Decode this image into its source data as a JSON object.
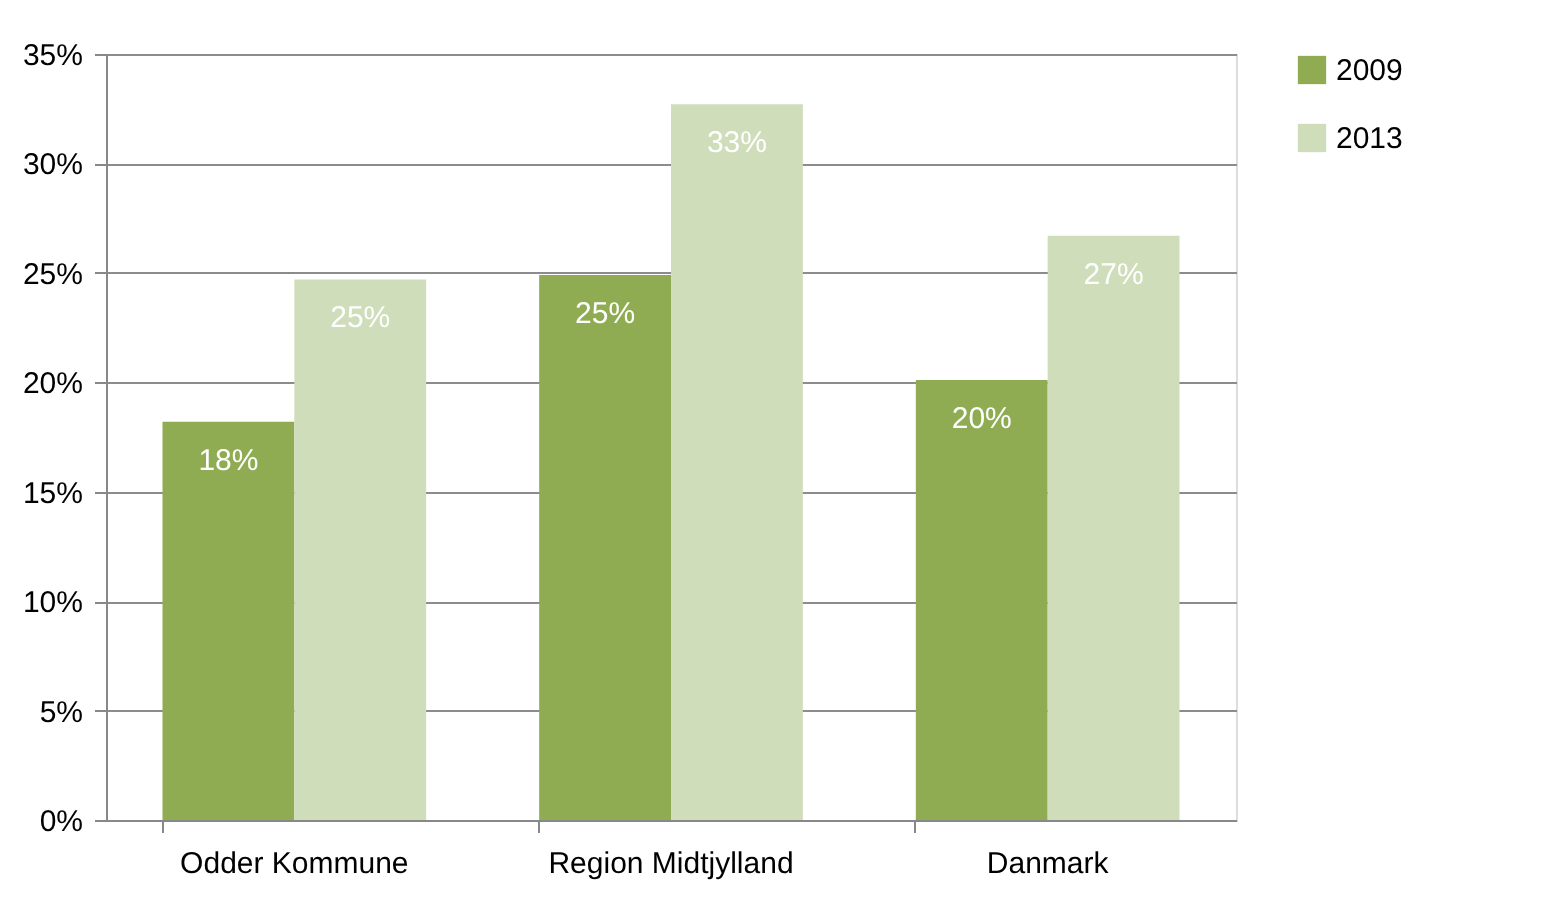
{
  "chart_data": {
    "type": "bar",
    "categories": [
      "Odder Kommune",
      "Region Midtjylland",
      "Danmark"
    ],
    "series": [
      {
        "name": "2009",
        "color": "#8fac52",
        "values": [
          18.2,
          24.9,
          20.1
        ],
        "value_labels": [
          "18%",
          "25%",
          "20%"
        ]
      },
      {
        "name": "2013",
        "color": "#cfddba",
        "values": [
          24.7,
          32.7,
          26.7
        ],
        "value_labels": [
          "25%",
          "33%",
          "27%"
        ]
      }
    ],
    "ylim": [
      0,
      35
    ],
    "yticks": [
      {
        "value": 0,
        "label": "0%"
      },
      {
        "value": 5,
        "label": "5%"
      },
      {
        "value": 10,
        "label": "10%"
      },
      {
        "value": 15,
        "label": "15%"
      },
      {
        "value": 20,
        "label": "20%"
      },
      {
        "value": 25,
        "label": "25%"
      },
      {
        "value": 30,
        "label": "30%"
      },
      {
        "value": 35,
        "label": "35%"
      }
    ],
    "grid": "y",
    "legend": "right"
  }
}
